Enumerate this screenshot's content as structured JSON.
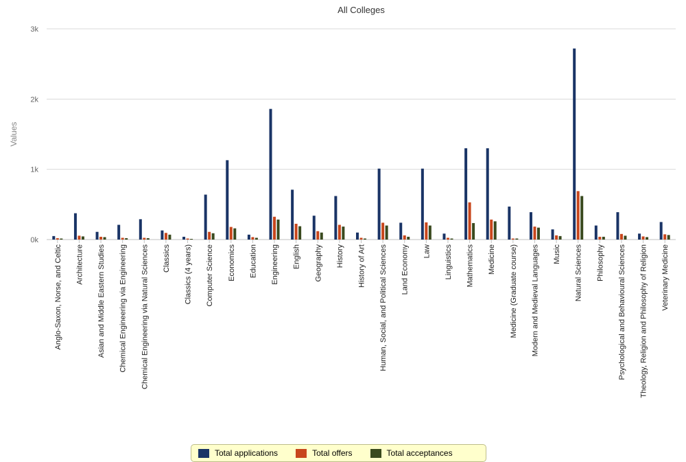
{
  "chart_data": {
    "type": "bar",
    "title": "All Colleges",
    "ylabel": "Values",
    "xlabel": "",
    "ylim": [
      0,
      3000
    ],
    "yticks": [
      {
        "value": 0,
        "label": "0k"
      },
      {
        "value": 1000,
        "label": "1k"
      },
      {
        "value": 2000,
        "label": "2k"
      },
      {
        "value": 3000,
        "label": "3k"
      }
    ],
    "grid": true,
    "legend_position": "bottom-center",
    "categories": [
      "Anglo-Saxon, Norse, and Celtic",
      "Architecture",
      "Asian and Middle Eastern Studies",
      "Chemical Engineering via Engineering",
      "Chemical Engineering via Natural Sciences",
      "Classics",
      "Classics (4 years)",
      "Computer Science",
      "Economics",
      "Education",
      "Engineering",
      "English",
      "Geography",
      "History",
      "History of Art",
      "Human, Social, and Political Sciences",
      "Land Economy",
      "Law",
      "Linguistics",
      "Mathematics",
      "Medicine",
      "Medicine (Graduate course)",
      "Modern and Medieval Languages",
      "Music",
      "Natural Sciences",
      "Philosophy",
      "Psychological and Behavioural Sciences",
      "Theology, Religion and Philosophy of Religion",
      "Veterinary Medicine"
    ],
    "series": [
      {
        "name": "Total applications",
        "color": "#1a3466",
        "values": [
          50,
          375,
          110,
          210,
          290,
          130,
          40,
          640,
          1130,
          70,
          1860,
          710,
          340,
          620,
          100,
          1010,
          240,
          1010,
          85,
          1300,
          1300,
          470,
          390,
          145,
          2720,
          200,
          390,
          85,
          250
        ]
      },
      {
        "name": "Total offers",
        "color": "#c8461c",
        "values": [
          20,
          55,
          40,
          25,
          25,
          95,
          15,
          110,
          180,
          35,
          325,
          225,
          120,
          210,
          25,
          240,
          60,
          245,
          25,
          530,
          285,
          15,
          185,
          60,
          690,
          40,
          80,
          45,
          75
        ]
      },
      {
        "name": "Total acceptances",
        "color": "#3a4a1f",
        "values": [
          15,
          45,
          35,
          20,
          20,
          70,
          10,
          90,
          160,
          25,
          285,
          190,
          100,
          185,
          15,
          200,
          40,
          200,
          15,
          235,
          260,
          15,
          170,
          50,
          620,
          40,
          55,
          35,
          65
        ]
      }
    ]
  }
}
